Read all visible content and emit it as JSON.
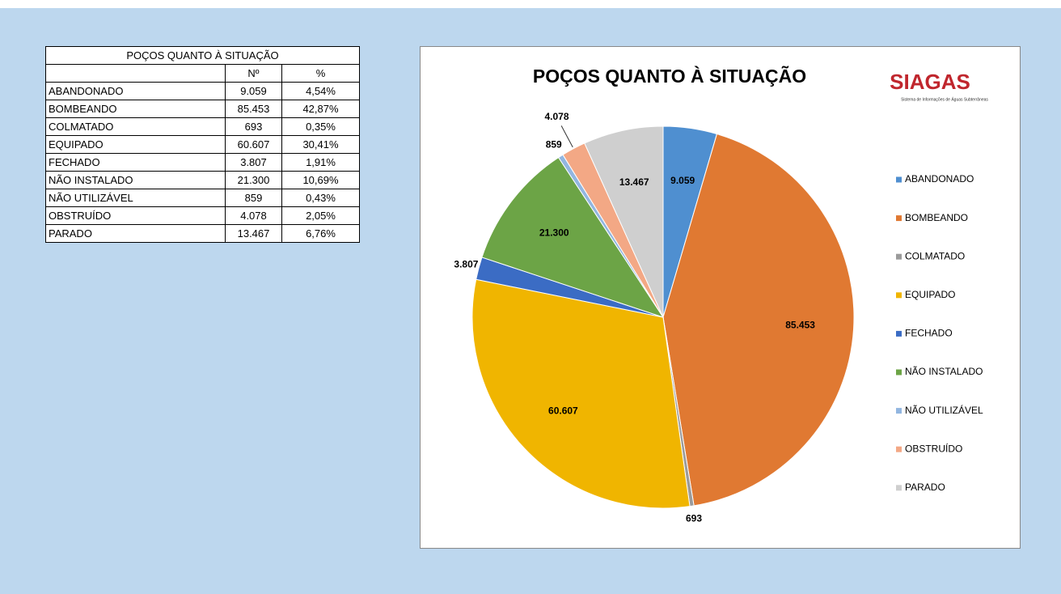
{
  "table": {
    "title": "POÇOS QUANTO À SITUAÇÃO",
    "header": [
      "Nº",
      "%"
    ],
    "rows": [
      [
        "ABANDONADO",
        "9.059",
        "4,54%"
      ],
      [
        "BOMBEANDO",
        "85.453",
        "42,87%"
      ],
      [
        "COLMATADO",
        "693",
        "0,35%"
      ],
      [
        "EQUIPADO",
        "60.607",
        "30,41%"
      ],
      [
        "FECHADO",
        "3.807",
        "1,91%"
      ],
      [
        "NÃO INSTALADO",
        "21.300",
        "10,69%"
      ],
      [
        "NÃO UTILIZÁVEL",
        "859",
        "0,43%"
      ],
      [
        "OBSTRUÍDO",
        "4.078",
        "2,05%"
      ],
      [
        "PARADO",
        "13.467",
        "6,76%"
      ]
    ]
  },
  "chart_data": {
    "type": "pie",
    "title": "POÇOS QUANTO À SITUAÇÃO",
    "logo": {
      "name": "SIAGAS",
      "subtitle": "Sistema de Informações de Águas Subterrâneas"
    },
    "categories": [
      "ABANDONADO",
      "BOMBEANDO",
      "COLMATADO",
      "EQUIPADO",
      "FECHADO",
      "NÃO INSTALADO",
      "NÃO UTILIZÁVEL",
      "OBSTRUÍDO",
      "PARADO"
    ],
    "values": [
      9059,
      85453,
      693,
      60607,
      3807,
      21300,
      859,
      4078,
      13467
    ],
    "value_labels": [
      "9.059",
      "85.453",
      "693",
      "60.607",
      "3.807",
      "21.300",
      "859",
      "4.078",
      "13.467"
    ],
    "colors": [
      "#4f8fd0",
      "#e07932",
      "#9b9b9b",
      "#f0b500",
      "#3b6cc4",
      "#6ca446",
      "#92b6e0",
      "#f3a885",
      "#cfcfcf"
    ],
    "legend": "right"
  }
}
